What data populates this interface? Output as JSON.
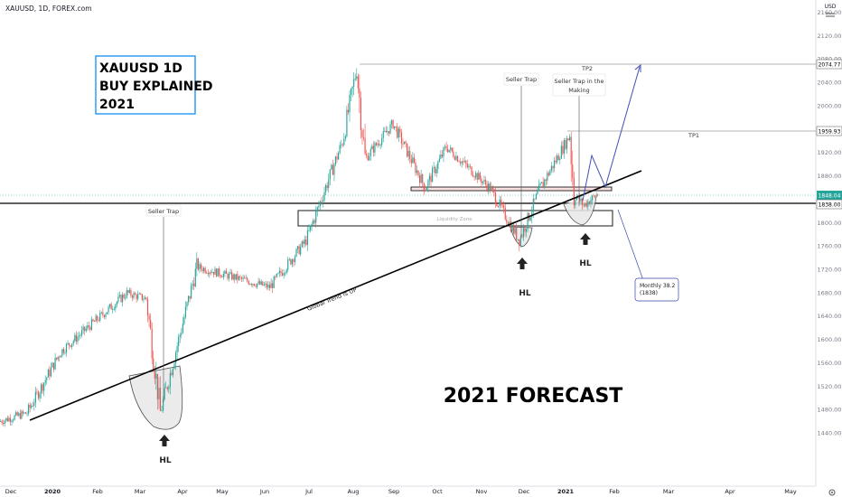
{
  "header": {
    "symbol": "XAUUSD, 1D, FOREX.com",
    "currency": "USD"
  },
  "title_box": {
    "line1": "XAUUSD 1D",
    "line2": "BUY EXPLAINED",
    "line3": "2021"
  },
  "forecast_label": "2021 FORECAST",
  "chart_data": {
    "type": "candlestick",
    "symbol": "XAUUSD",
    "timeframe": "1D",
    "y_axis": {
      "ticks": [
        1440,
        1480,
        1520,
        1560,
        1600,
        1640,
        1680,
        1720,
        1760,
        1800,
        1840,
        1880,
        1920,
        1960,
        2000,
        2040,
        2080,
        2120,
        2160
      ],
      "range": [
        1370,
        2185
      ]
    },
    "x_axis": {
      "labels": [
        "Dec",
        "2020",
        "Feb",
        "Mar",
        "Apr",
        "May",
        "Jun",
        "Jul",
        "Aug",
        "Sep",
        "Oct",
        "Nov",
        "Dec",
        "2021",
        "Feb",
        "Mar",
        "Apr",
        "May"
      ]
    },
    "price_tags": {
      "tp2": "2074.77",
      "tp1": "1959.93",
      "current": "1848.04",
      "level": "1838.00"
    },
    "key_points": [
      {
        "date": "2019-11-25",
        "close": 1460
      },
      {
        "date": "2019-12-15",
        "close": 1475
      },
      {
        "date": "2020-01-08",
        "close": 1580
      },
      {
        "date": "2020-02-24",
        "close": 1680
      },
      {
        "date": "2020-03-09",
        "close": 1670
      },
      {
        "date": "2020-03-19",
        "close": 1475
      },
      {
        "date": "2020-04-14",
        "close": 1725
      },
      {
        "date": "2020-06-05",
        "close": 1690
      },
      {
        "date": "2020-07-01",
        "close": 1770
      },
      {
        "date": "2020-07-27",
        "close": 1940
      },
      {
        "date": "2020-08-06",
        "close": 2065
      },
      {
        "date": "2020-08-12",
        "close": 1910
      },
      {
        "date": "2020-09-01",
        "close": 1970
      },
      {
        "date": "2020-09-24",
        "close": 1860
      },
      {
        "date": "2020-10-09",
        "close": 1930
      },
      {
        "date": "2020-11-09",
        "close": 1860
      },
      {
        "date": "2020-11-30",
        "close": 1770
      },
      {
        "date": "2020-12-15",
        "close": 1860
      },
      {
        "date": "2021-01-05",
        "close": 1950
      },
      {
        "date": "2021-01-08",
        "close": 1850
      },
      {
        "date": "2021-01-15",
        "close": 1830
      },
      {
        "date": "2021-01-25",
        "close": 1850
      }
    ]
  },
  "annotations": {
    "seller_trap_left": "Seller Trap",
    "seller_trap_mid": "Seller Trap",
    "seller_trap_making_1": "Seller Trap in the",
    "seller_trap_making_2": "Making",
    "liquidity_zone": "Liquidity Zone",
    "trend_label": "Global Trend is UP",
    "tp1": "TP1",
    "tp2": "TP2",
    "hl_left": "HL",
    "hl_mid": "HL",
    "hl_right": "HL",
    "monthly_1": "Monthly 38.2",
    "monthly_2": "(1838)"
  },
  "colors": {
    "up": "#26a69a",
    "down": "#ef5350",
    "current_tag": "#26a69a",
    "callout": "#3949ab",
    "title_border": "#2196f3",
    "upmove": "#3f51b5"
  }
}
